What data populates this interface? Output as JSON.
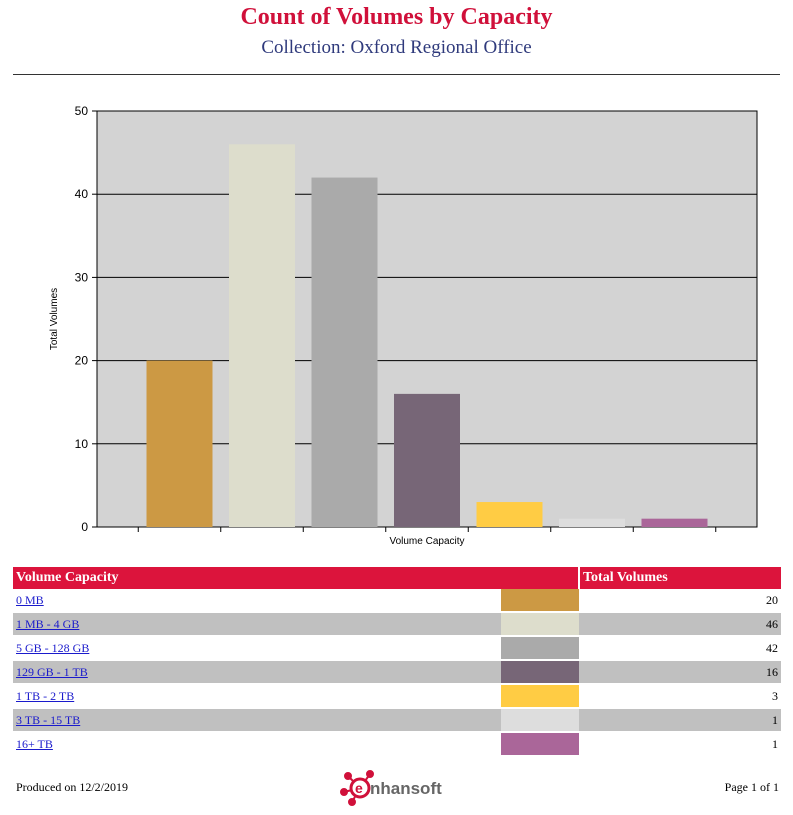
{
  "header": {
    "title": "Count of Volumes by Capacity",
    "subtitle": "Collection: Oxford Regional Office"
  },
  "chart_data": {
    "type": "bar",
    "categories": [
      "0 MB",
      "1 MB - 4 GB",
      "5 GB - 128 GB",
      "129 GB - 1 TB",
      "1 TB - 2 TB",
      "3 TB - 15 TB",
      "16+ TB"
    ],
    "values": [
      20,
      46,
      42,
      16,
      3,
      1,
      1
    ],
    "colors": [
      "#cc9944",
      "#ddddcc",
      "#aaaaaa",
      "#776677",
      "#ffcc44",
      "#dddddd",
      "#aa6699"
    ],
    "xlabel": "Volume Capacity",
    "ylabel": "Total Volumes",
    "ylim": [
      0,
      50
    ],
    "yticks": [
      0,
      10,
      20,
      30,
      40,
      50
    ],
    "grid": true,
    "background": "#d3d3d3"
  },
  "table": {
    "headers": [
      "Volume Capacity",
      "Total Volumes"
    ],
    "rows": [
      {
        "label": "0 MB",
        "color": "#cc9944",
        "value": "20"
      },
      {
        "label": "1 MB - 4 GB",
        "color": "#ddddcc",
        "value": "46"
      },
      {
        "label": "5 GB - 128 GB",
        "color": "#aaaaaa",
        "value": "42"
      },
      {
        "label": "129 GB - 1 TB",
        "color": "#776677",
        "value": "16"
      },
      {
        "label": "1 TB - 2 TB",
        "color": "#ffcc44",
        "value": "3"
      },
      {
        "label": "3 TB - 15 TB",
        "color": "#dddddd",
        "value": "1"
      },
      {
        "label": "16+ TB",
        "color": "#aa6699",
        "value": "1"
      }
    ]
  },
  "footer": {
    "produced": "Produced on 12/2/2019",
    "page": "Page 1 of 1",
    "logo_text": "nhansoft",
    "logo_icon": "enhansoft-molecule-e-icon"
  }
}
